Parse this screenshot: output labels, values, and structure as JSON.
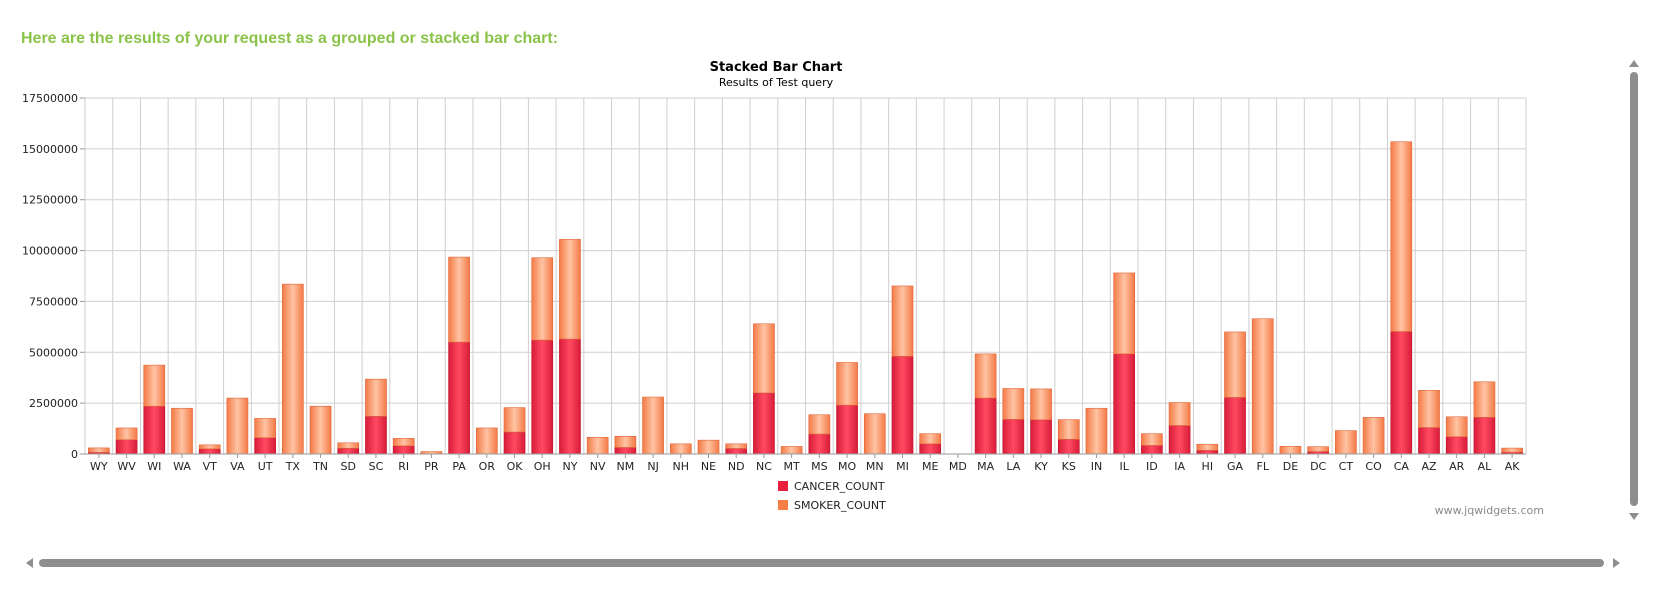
{
  "heading": "Here are the results of your request as a grouped or stacked bar chart:",
  "watermark": "www.jqwidgets.com",
  "chart_data": {
    "type": "bar",
    "stacked": true,
    "title": "Stacked Bar Chart",
    "subtitle": "Results of Test query",
    "xlabel": "",
    "ylabel": "",
    "ylim": [
      0,
      17500000
    ],
    "yticks": [
      0,
      2500000,
      5000000,
      7500000,
      10000000,
      12500000,
      15000000,
      17500000
    ],
    "grid": true,
    "legend_position": "bottom",
    "categories": [
      "WY",
      "WV",
      "WI",
      "WA",
      "VT",
      "VA",
      "UT",
      "TX",
      "TN",
      "SD",
      "SC",
      "RI",
      "PR",
      "PA",
      "OR",
      "OK",
      "OH",
      "NY",
      "NV",
      "NM",
      "NJ",
      "NH",
      "NE",
      "ND",
      "NC",
      "MT",
      "MS",
      "MO",
      "MN",
      "MI",
      "ME",
      "MD",
      "MA",
      "LA",
      "KY",
      "KS",
      "IN",
      "IL",
      "ID",
      "IA",
      "HI",
      "GA",
      "FL",
      "DE",
      "DC",
      "CT",
      "CO",
      "CA",
      "AZ",
      "AR",
      "AL",
      "AK"
    ],
    "series": [
      {
        "name": "CANCER_COUNT",
        "color": "#e8203e",
        "values": [
          80000,
          700000,
          2350000,
          0,
          250000,
          0,
          800000,
          0,
          0,
          280000,
          1850000,
          400000,
          0,
          5500000,
          0,
          1080000,
          5600000,
          5650000,
          0,
          320000,
          0,
          0,
          0,
          270000,
          3000000,
          0,
          980000,
          2400000,
          0,
          4800000,
          500000,
          0,
          2750000,
          1700000,
          1680000,
          720000,
          0,
          4920000,
          420000,
          1400000,
          180000,
          2780000,
          0,
          0,
          120000,
          0,
          0,
          6020000,
          1300000,
          850000,
          1800000,
          90000
        ]
      },
      {
        "name": "SMOKER_COUNT",
        "color": "#f57e45",
        "values": [
          220000,
          580000,
          2020000,
          2250000,
          200000,
          2750000,
          950000,
          8350000,
          2350000,
          270000,
          1830000,
          370000,
          120000,
          4180000,
          1280000,
          1200000,
          4050000,
          4900000,
          820000,
          550000,
          2800000,
          500000,
          680000,
          230000,
          3400000,
          370000,
          950000,
          2100000,
          1980000,
          3460000,
          500000,
          0,
          2170000,
          1520000,
          1520000,
          970000,
          2250000,
          3980000,
          580000,
          1130000,
          300000,
          3220000,
          6650000,
          380000,
          240000,
          1150000,
          1800000,
          9330000,
          1830000,
          980000,
          1750000,
          200000
        ]
      }
    ]
  }
}
